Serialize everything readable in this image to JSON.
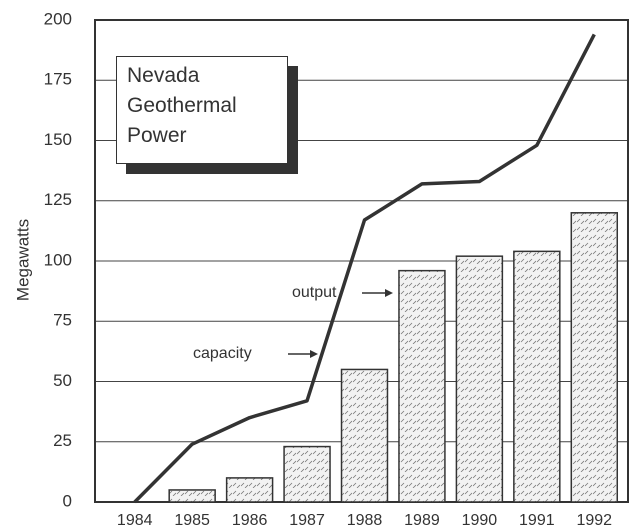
{
  "chart_data": {
    "type": "bar",
    "title": "Nevada Geothermal Power",
    "y_label": "Megawatts",
    "categories": [
      "1984",
      "1985",
      "1986",
      "1987",
      "1988",
      "1989",
      "1990",
      "1991",
      "1992"
    ],
    "series": [
      {
        "name": "output",
        "type": "bar",
        "color": "#f2f2f2",
        "values": [
          0,
          5,
          10,
          23,
          55,
          96,
          102,
          104,
          120
        ]
      },
      {
        "name": "capacity",
        "type": "line",
        "color": "#333333",
        "values": [
          0,
          24,
          35,
          42,
          117,
          132,
          133,
          148,
          194
        ]
      }
    ],
    "ylim": [
      0,
      200
    ],
    "yticks": [
      0,
      25,
      50,
      75,
      100,
      125,
      150,
      175,
      200
    ],
    "grid": true
  }
}
